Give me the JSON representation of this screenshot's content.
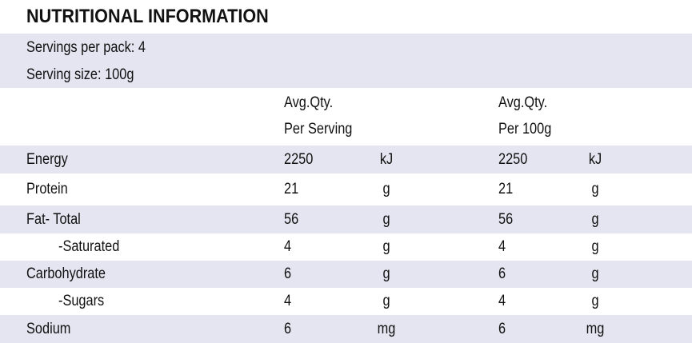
{
  "title": "NUTRITIONAL INFORMATION",
  "servings_per_pack": "Servings per pack: 4",
  "serving_size": "Serving size: 100g",
  "header": {
    "per_serving_line1": "Avg.Qty.",
    "per_serving_line2": "Per Serving",
    "per_100g_line1": "Avg.Qty.",
    "per_100g_line2": "Per 100g"
  },
  "rows": [
    {
      "name": "Energy",
      "serving": "2250",
      "serving_unit": "kJ",
      "per100": "2250",
      "per100_unit": "kJ"
    },
    {
      "name": "Protein",
      "serving": "21",
      "serving_unit": "g",
      "per100": "21",
      "per100_unit": "g"
    },
    {
      "name": "Fat- Total",
      "serving": "56",
      "serving_unit": "g",
      "per100": "56",
      "per100_unit": "g"
    },
    {
      "name": "-Saturated",
      "serving": "4",
      "serving_unit": "g",
      "per100": "4",
      "per100_unit": "g"
    },
    {
      "name": "Carbohydrate",
      "serving": "6",
      "serving_unit": "g",
      "per100": "6",
      "per100_unit": "g"
    },
    {
      "name": "-Sugars",
      "serving": "4",
      "serving_unit": "g",
      "per100": "4",
      "per100_unit": "g"
    },
    {
      "name": "Sodium",
      "serving": "6",
      "serving_unit": "mg",
      "per100": "6",
      "per100_unit": "mg"
    }
  ],
  "colors": {
    "row_shade": "#e4e5f0",
    "text": "#111111"
  }
}
